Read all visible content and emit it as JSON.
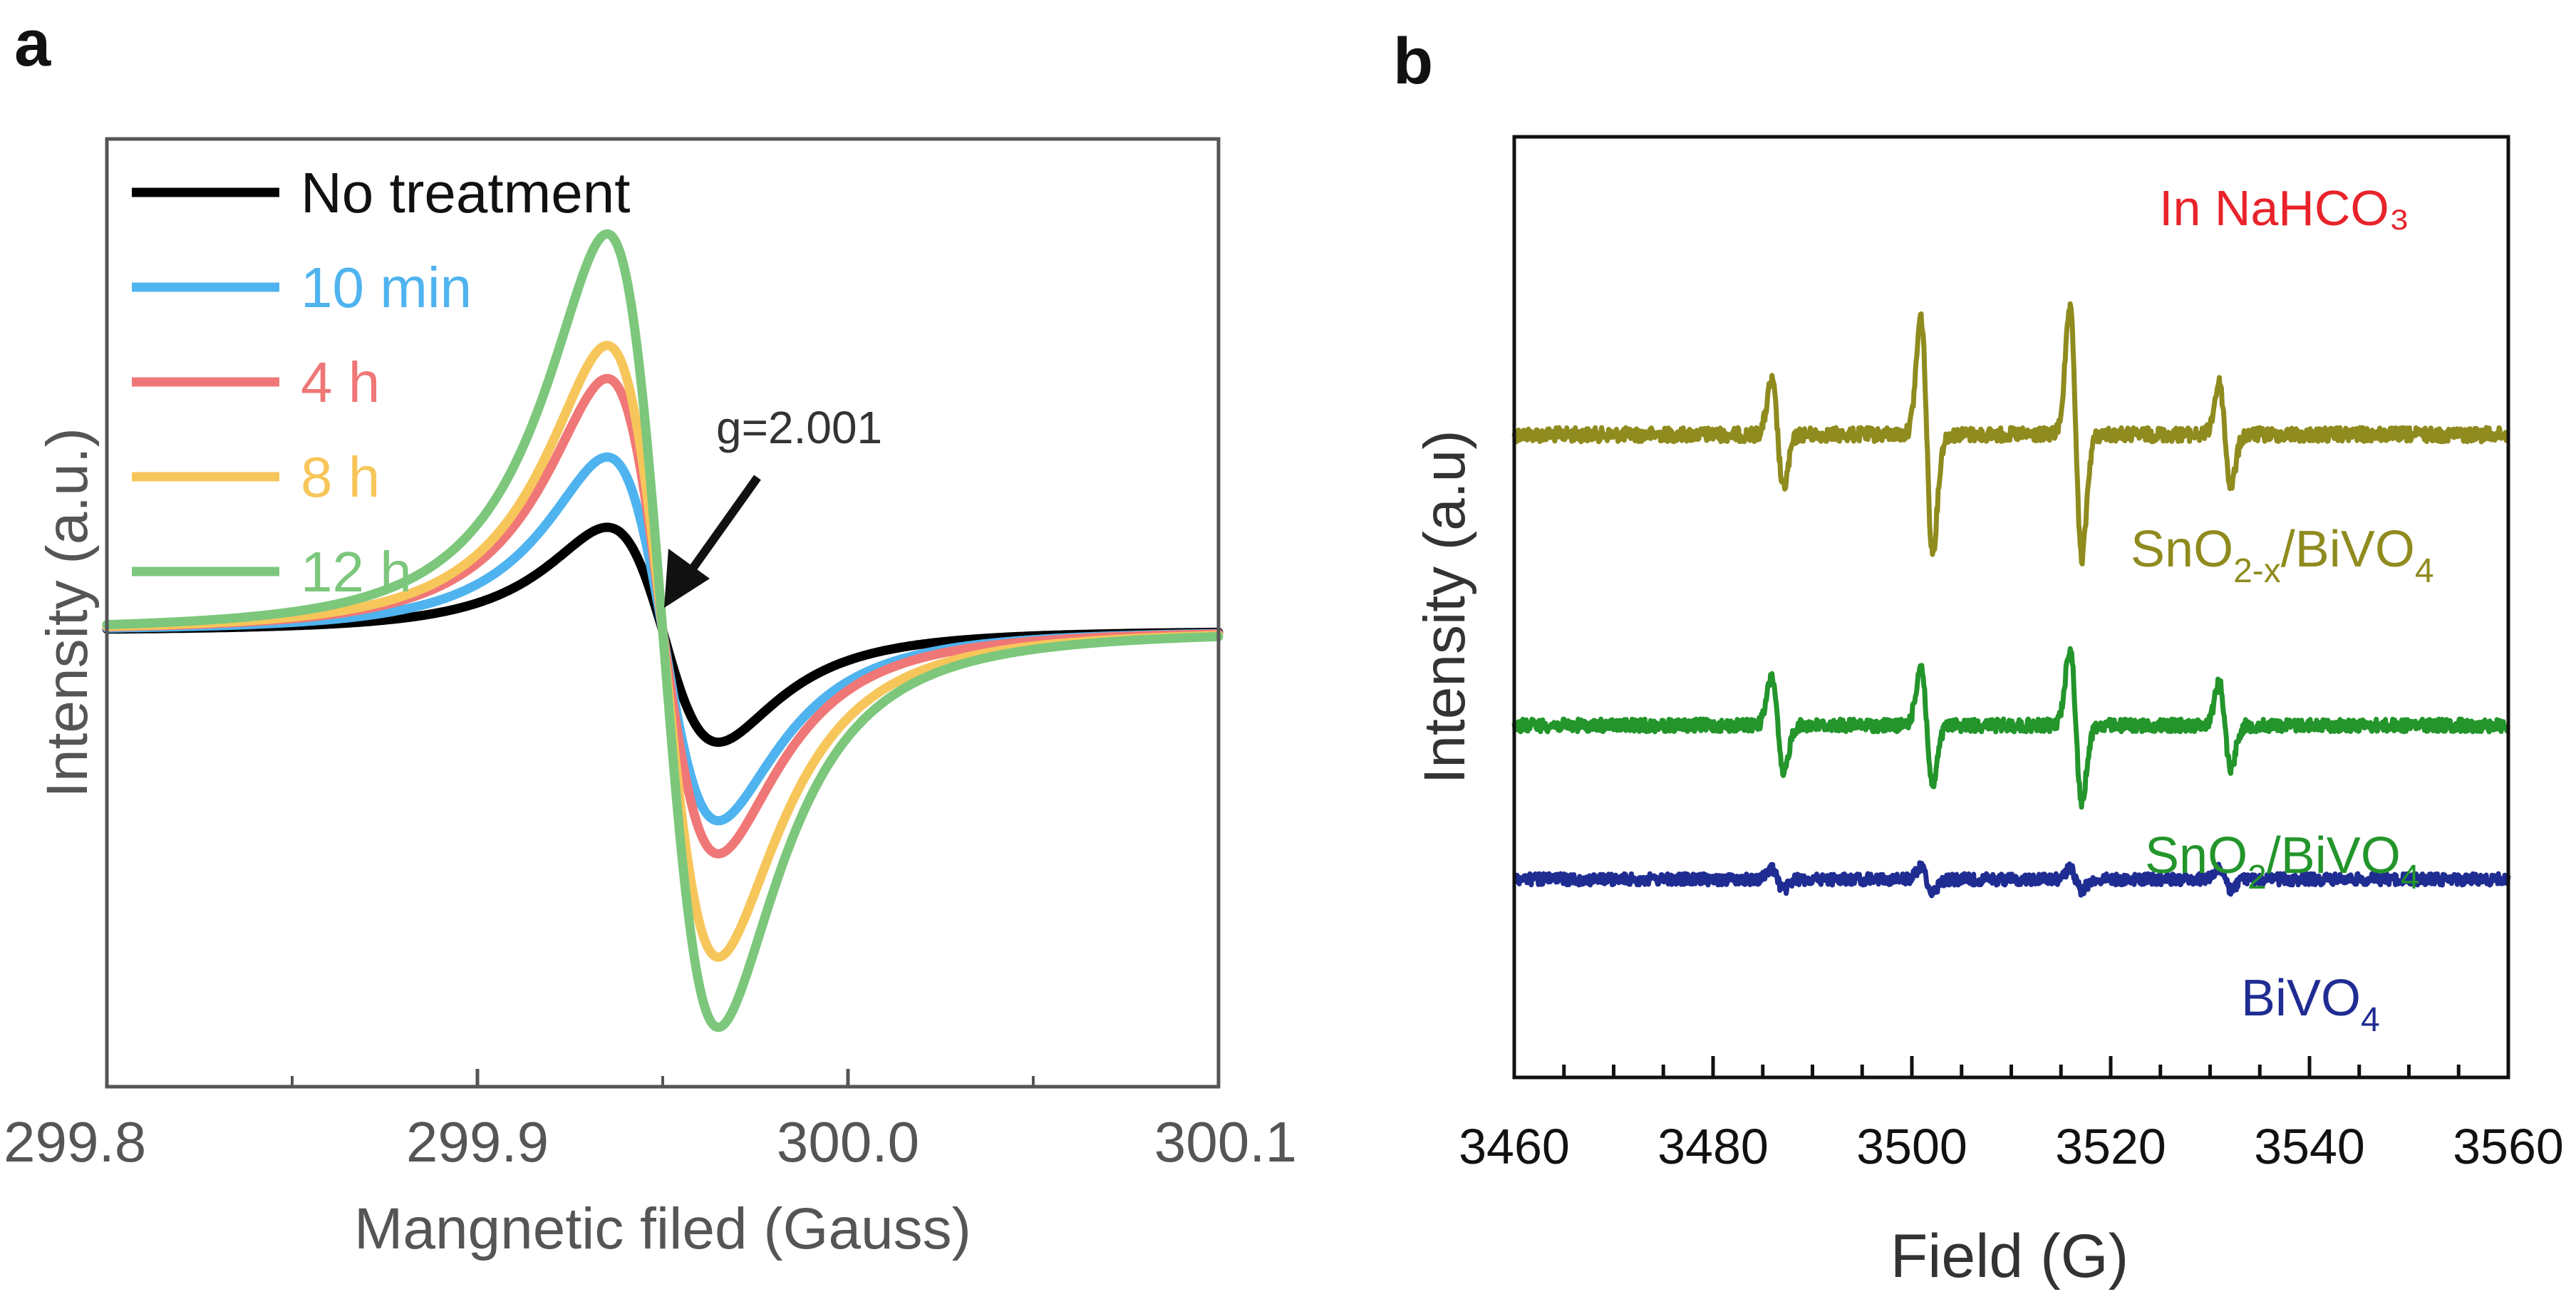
{
  "figure": {
    "panels": [
      {
        "label": "a"
      },
      {
        "label": "b"
      }
    ]
  },
  "chart_data": [
    {
      "type": "line",
      "panel": "a",
      "title": "",
      "xlabel": "Mangnetic filed (Gauss)",
      "ylabel": "Intensity (a.u.)",
      "xlim": [
        299.8,
        300.1
      ],
      "ylim": [
        -1.0,
        1.0
      ],
      "xticks": [
        "299.8",
        "299.9",
        "300.0",
        "300.1"
      ],
      "xtick_values": [
        299.8,
        299.9,
        300.0,
        300.1
      ],
      "yticks_shown": false,
      "legend_position": "top-left",
      "curve_model": {
        "shape": "derivative-lorentzian",
        "center": 299.95,
        "peak_position": 299.934,
        "trough_position": 299.964,
        "note": "peak/trough amplitudes are relative intensity read from the plot"
      },
      "series": [
        {
          "name": "No treatment",
          "color": "#000000",
          "peak": 0.25,
          "trough": -0.27
        },
        {
          "name": "10 min",
          "color": "#4fb3ef",
          "peak": 0.42,
          "trough": -0.46
        },
        {
          "name": "4 h",
          "color": "#f07777",
          "peak": 0.61,
          "trough": -0.54
        },
        {
          "name": "8 h",
          "color": "#f7c65a",
          "peak": 0.69,
          "trough": -0.79
        },
        {
          "name": "12 h",
          "color": "#7cc77c",
          "peak": 0.96,
          "trough": -0.96
        }
      ],
      "annotations": [
        {
          "text": "g=2.001",
          "target_x": 299.95
        }
      ]
    },
    {
      "type": "line",
      "panel": "b",
      "title": "In NaHCO₃",
      "title_color": "#e8232a",
      "xlabel": "Field (G)",
      "ylabel": "Intensity (a.u)",
      "xlim": [
        3460,
        3560
      ],
      "xticks": [
        "3460",
        "3480",
        "3500",
        "3520",
        "3540",
        "3560"
      ],
      "xtick_values": [
        3460,
        3480,
        3500,
        3520,
        3540,
        3560
      ],
      "minor_xtick_step": 5,
      "yticks_shown": false,
      "hyperfine_lines": [
        3486.5,
        3501.5,
        3516.5,
        3531.5
      ],
      "series": [
        {
          "name": "SnO2-x/BiVO4",
          "color": "#8f8b1e",
          "baseline": 0.5,
          "amplitudes": [
            0.25,
            0.55,
            0.58,
            0.24
          ],
          "label_main": "SnO",
          "label_sub1": "2-x",
          "label_mid": "/BiVO",
          "label_sub2": "4"
        },
        {
          "name": "SnO2/BiVO4",
          "color": "#23952b",
          "baseline": -0.35,
          "amplitudes": [
            0.23,
            0.28,
            0.36,
            0.2
          ],
          "label_main": "SnO",
          "label_sub1": "2",
          "label_mid": "/BiVO",
          "label_sub2": "4"
        },
        {
          "name": "BiVO4",
          "color": "#1f2c92",
          "baseline": -0.8,
          "amplitudes": [
            0.05,
            0.06,
            0.05,
            0.05
          ],
          "label_main": "BiVO",
          "label_sub1": "4",
          "label_mid": "",
          "label_sub2": ""
        }
      ]
    }
  ]
}
